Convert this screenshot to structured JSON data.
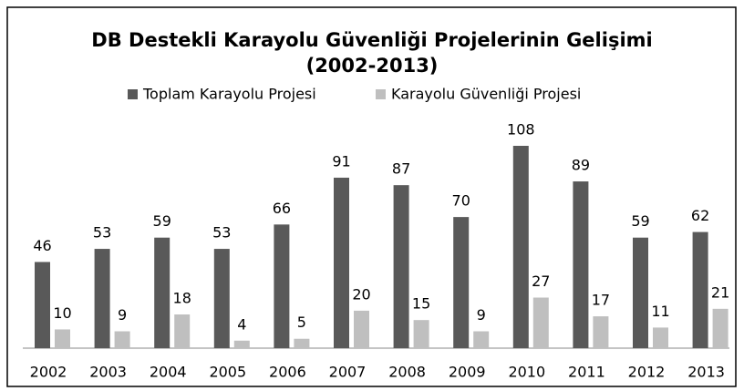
{
  "chart_data": {
    "type": "bar",
    "title": [
      "DB Destekli Karayolu Güvenliği Projelerinin Gelişimi",
      "(2002-2013)"
    ],
    "categories": [
      "2002",
      "2003",
      "2004",
      "2005",
      "2006",
      "2007",
      "2008",
      "2009",
      "2010",
      "2011",
      "2012",
      "2013"
    ],
    "series": [
      {
        "name": "Toplam Karayolu Projesi",
        "color": "#595959",
        "values": [
          46,
          53,
          59,
          53,
          66,
          91,
          87,
          70,
          108,
          89,
          59,
          62
        ]
      },
      {
        "name": "Karayolu Güvenliği Projesi",
        "color": "#bfbfbf",
        "values": [
          10,
          9,
          18,
          4,
          5,
          20,
          15,
          9,
          27,
          17,
          11,
          21
        ]
      }
    ],
    "legend": "top"
  }
}
